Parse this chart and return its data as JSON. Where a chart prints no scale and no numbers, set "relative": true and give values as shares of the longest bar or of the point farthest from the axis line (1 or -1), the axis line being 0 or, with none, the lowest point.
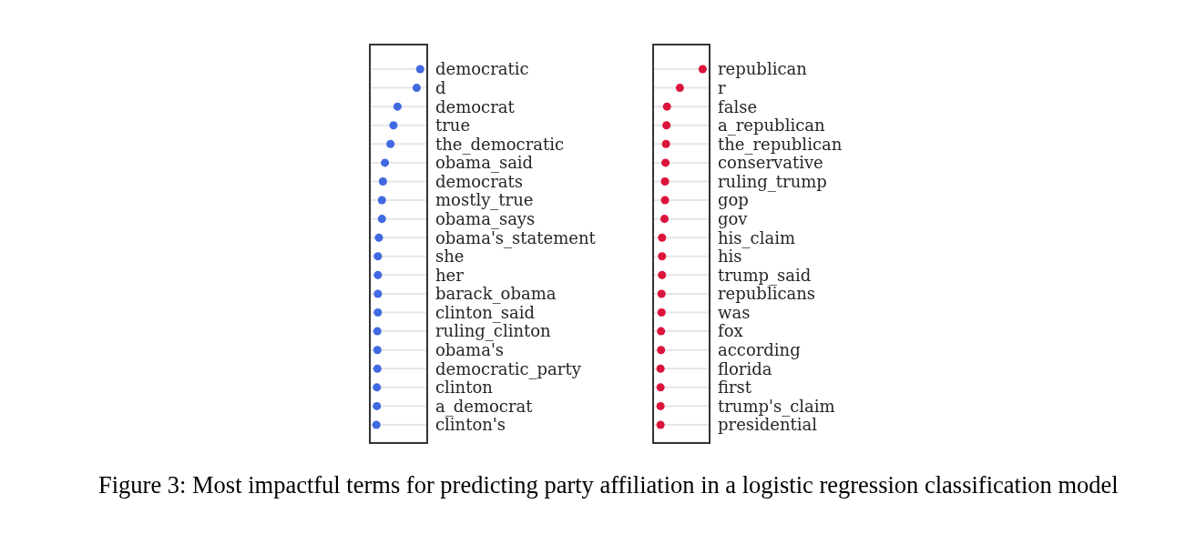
{
  "chart_data": [
    {
      "type": "scatter",
      "orientation": "horizontal",
      "relative": true,
      "categories": [
        "democratic",
        "d",
        "democrat",
        "true",
        "the_democratic",
        "obama_said",
        "democrats",
        "mostly_true",
        "obama_says",
        "obama's_statement",
        "she",
        "her",
        "barack_obama",
        "clinton_said",
        "ruling_clinton",
        "obama's",
        "democratic_party",
        "clinton",
        "a_democrat",
        "clinton's"
      ],
      "values": [
        1,
        0.93,
        0.55,
        0.47,
        0.41,
        0.3,
        0.26,
        0.24,
        0.24,
        0.18,
        0.16,
        0.16,
        0.16,
        0.16,
        0.15,
        0.15,
        0.15,
        0.14,
        0.14,
        0.13
      ],
      "color": "#4169e1",
      "marker": "circle",
      "grid": "y",
      "tick_labels": "y",
      "annotations": [
        "Figure 3: Most impactful terms for predicting party affiliation in a logistic regression classification model"
      ]
    },
    {
      "type": "scatter",
      "orientation": "horizontal",
      "relative": true,
      "categories": [
        "republican",
        "r",
        "false",
        "a_republican",
        "the_republican",
        "conservative",
        "ruling_trump",
        "gop",
        "gov",
        "his_claim",
        "his",
        "trump_said",
        "republicans",
        "was",
        "fox",
        "according",
        "florida",
        "first",
        "trump's_claim",
        "presidential"
      ],
      "values": [
        1,
        0.54,
        0.28,
        0.27,
        0.26,
        0.25,
        0.24,
        0.24,
        0.23,
        0.18,
        0.18,
        0.18,
        0.17,
        0.17,
        0.16,
        0.16,
        0.15,
        0.15,
        0.15,
        0.15
      ],
      "color": "#dc143c",
      "marker": "circle",
      "grid": "y",
      "tick_labels": "y"
    }
  ]
}
